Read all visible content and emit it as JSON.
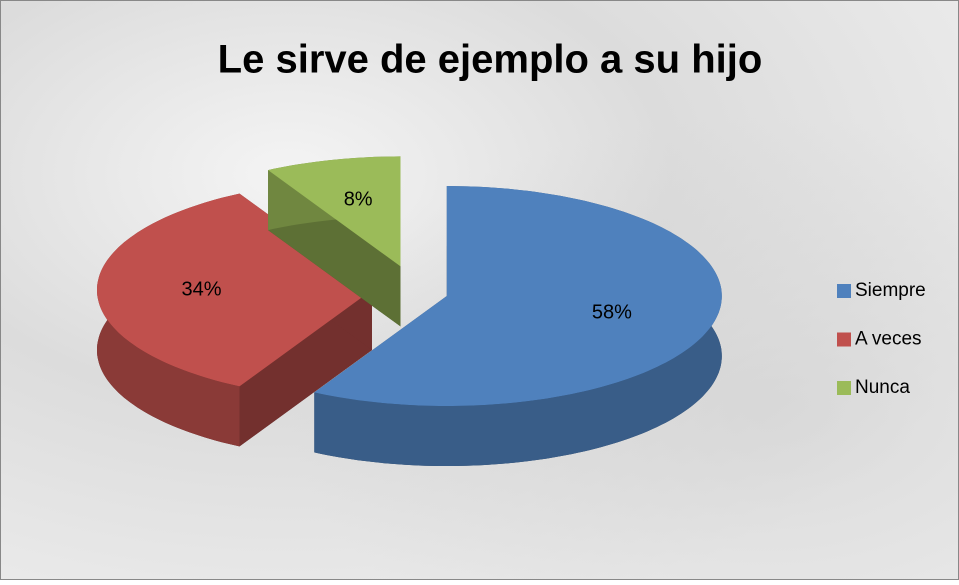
{
  "chart_data": {
    "type": "pie",
    "title": "Le sirve de ejemplo a su hijo",
    "categories": [
      "Siempre",
      "A veces",
      "Nunca"
    ],
    "values": [
      58,
      34,
      8
    ],
    "value_labels": [
      "58%",
      "34%",
      "8%"
    ],
    "colors": [
      "#4f81bd",
      "#c0504d",
      "#9bbb59"
    ],
    "legend": "right"
  }
}
